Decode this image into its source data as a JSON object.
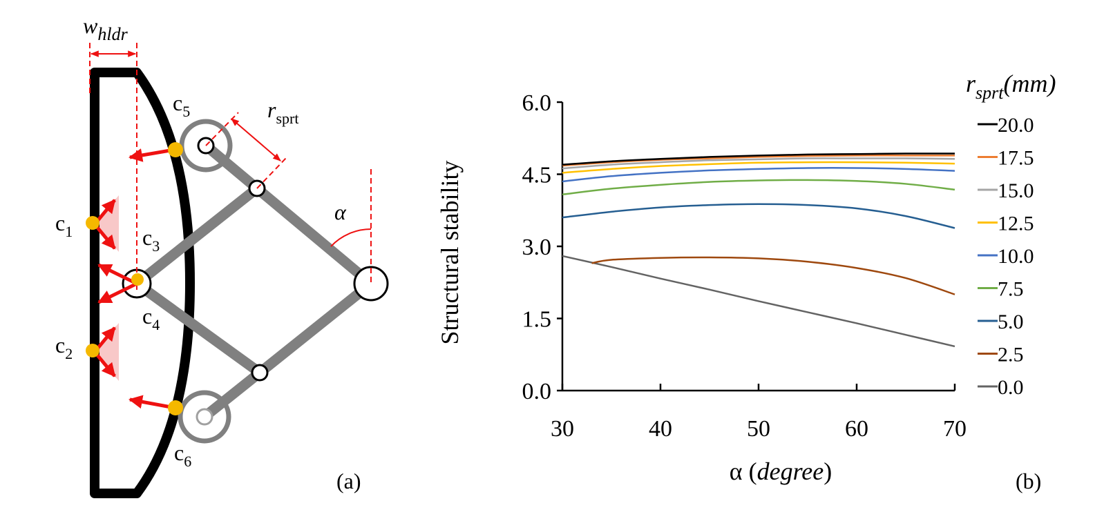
{
  "panel_a": {
    "label_w": "w",
    "label_w_sub": "hldr",
    "label_r": "r",
    "label_r_sub": "sprt",
    "label_alpha": "α",
    "contacts": [
      {
        "label": "c",
        "sub": "1"
      },
      {
        "label": "c",
        "sub": "2"
      },
      {
        "label": "c",
        "sub": "3"
      },
      {
        "label": "c",
        "sub": "4"
      },
      {
        "label": "c",
        "sub": "5"
      },
      {
        "label": "c",
        "sub": "6"
      }
    ],
    "tag": "(a)",
    "colors": {
      "frame": "#000000",
      "link": "#808080",
      "contact": "#f5b800",
      "force": "#ee1111",
      "cone": "#f8c8c8",
      "dim": "#ee1111"
    }
  },
  "panel_b": {
    "tag": "(b)"
  },
  "chart_data": {
    "type": "line",
    "title": "",
    "xlabel": "α (degree)",
    "xlabel_parts": {
      "symbol": "α",
      "open": " (",
      "unit": "degree",
      "close": ")"
    },
    "ylabel": "Structural stability",
    "xlim": [
      30,
      70
    ],
    "ylim": [
      0,
      6
    ],
    "xticks": [
      "30",
      "40",
      "50",
      "60",
      "70"
    ],
    "yticks": [
      "0.0",
      "1.5",
      "3.0",
      "4.5",
      "6.0"
    ],
    "grid": false,
    "legend_placement": "right",
    "legend_title": {
      "symbol": "r",
      "sub": "sprt",
      "unit": "(mm)"
    },
    "x": [
      30,
      35,
      40,
      45,
      50,
      55,
      60,
      65,
      70
    ],
    "series": [
      {
        "name": "20.0",
        "color": "#000000",
        "values": [
          4.7,
          4.77,
          4.82,
          4.86,
          4.89,
          4.91,
          4.92,
          4.93,
          4.93
        ]
      },
      {
        "name": "17.5",
        "color": "#ed7d31",
        "values": [
          4.68,
          4.75,
          4.8,
          4.83,
          4.86,
          4.88,
          4.89,
          4.89,
          4.89
        ]
      },
      {
        "name": "15.0",
        "color": "#a5a5a5",
        "values": [
          4.62,
          4.7,
          4.75,
          4.79,
          4.81,
          4.83,
          4.83,
          4.83,
          4.82
        ]
      },
      {
        "name": "12.5",
        "color": "#ffc000",
        "values": [
          4.53,
          4.61,
          4.67,
          4.71,
          4.74,
          4.75,
          4.75,
          4.74,
          4.72
        ]
      },
      {
        "name": "10.0",
        "color": "#4472c4",
        "values": [
          4.35,
          4.46,
          4.53,
          4.58,
          4.61,
          4.63,
          4.63,
          4.61,
          4.57
        ]
      },
      {
        "name": "7.5",
        "color": "#70ad47",
        "values": [
          4.08,
          4.2,
          4.28,
          4.34,
          4.37,
          4.38,
          4.36,
          4.3,
          4.18
        ]
      },
      {
        "name": "5.0",
        "color": "#255e91",
        "values": [
          3.6,
          3.72,
          3.81,
          3.86,
          3.88,
          3.86,
          3.79,
          3.63,
          3.38
        ]
      },
      {
        "name": "2.5",
        "color": "#9e480e",
        "values": [
          null,
          2.72,
          2.76,
          2.77,
          2.75,
          2.68,
          2.55,
          2.34,
          2.0
        ]
      },
      {
        "name": "0.0",
        "color": "#636363",
        "values": [
          2.8,
          2.57,
          2.33,
          2.1,
          1.86,
          1.63,
          1.4,
          1.16,
          0.92
        ]
      }
    ]
  }
}
